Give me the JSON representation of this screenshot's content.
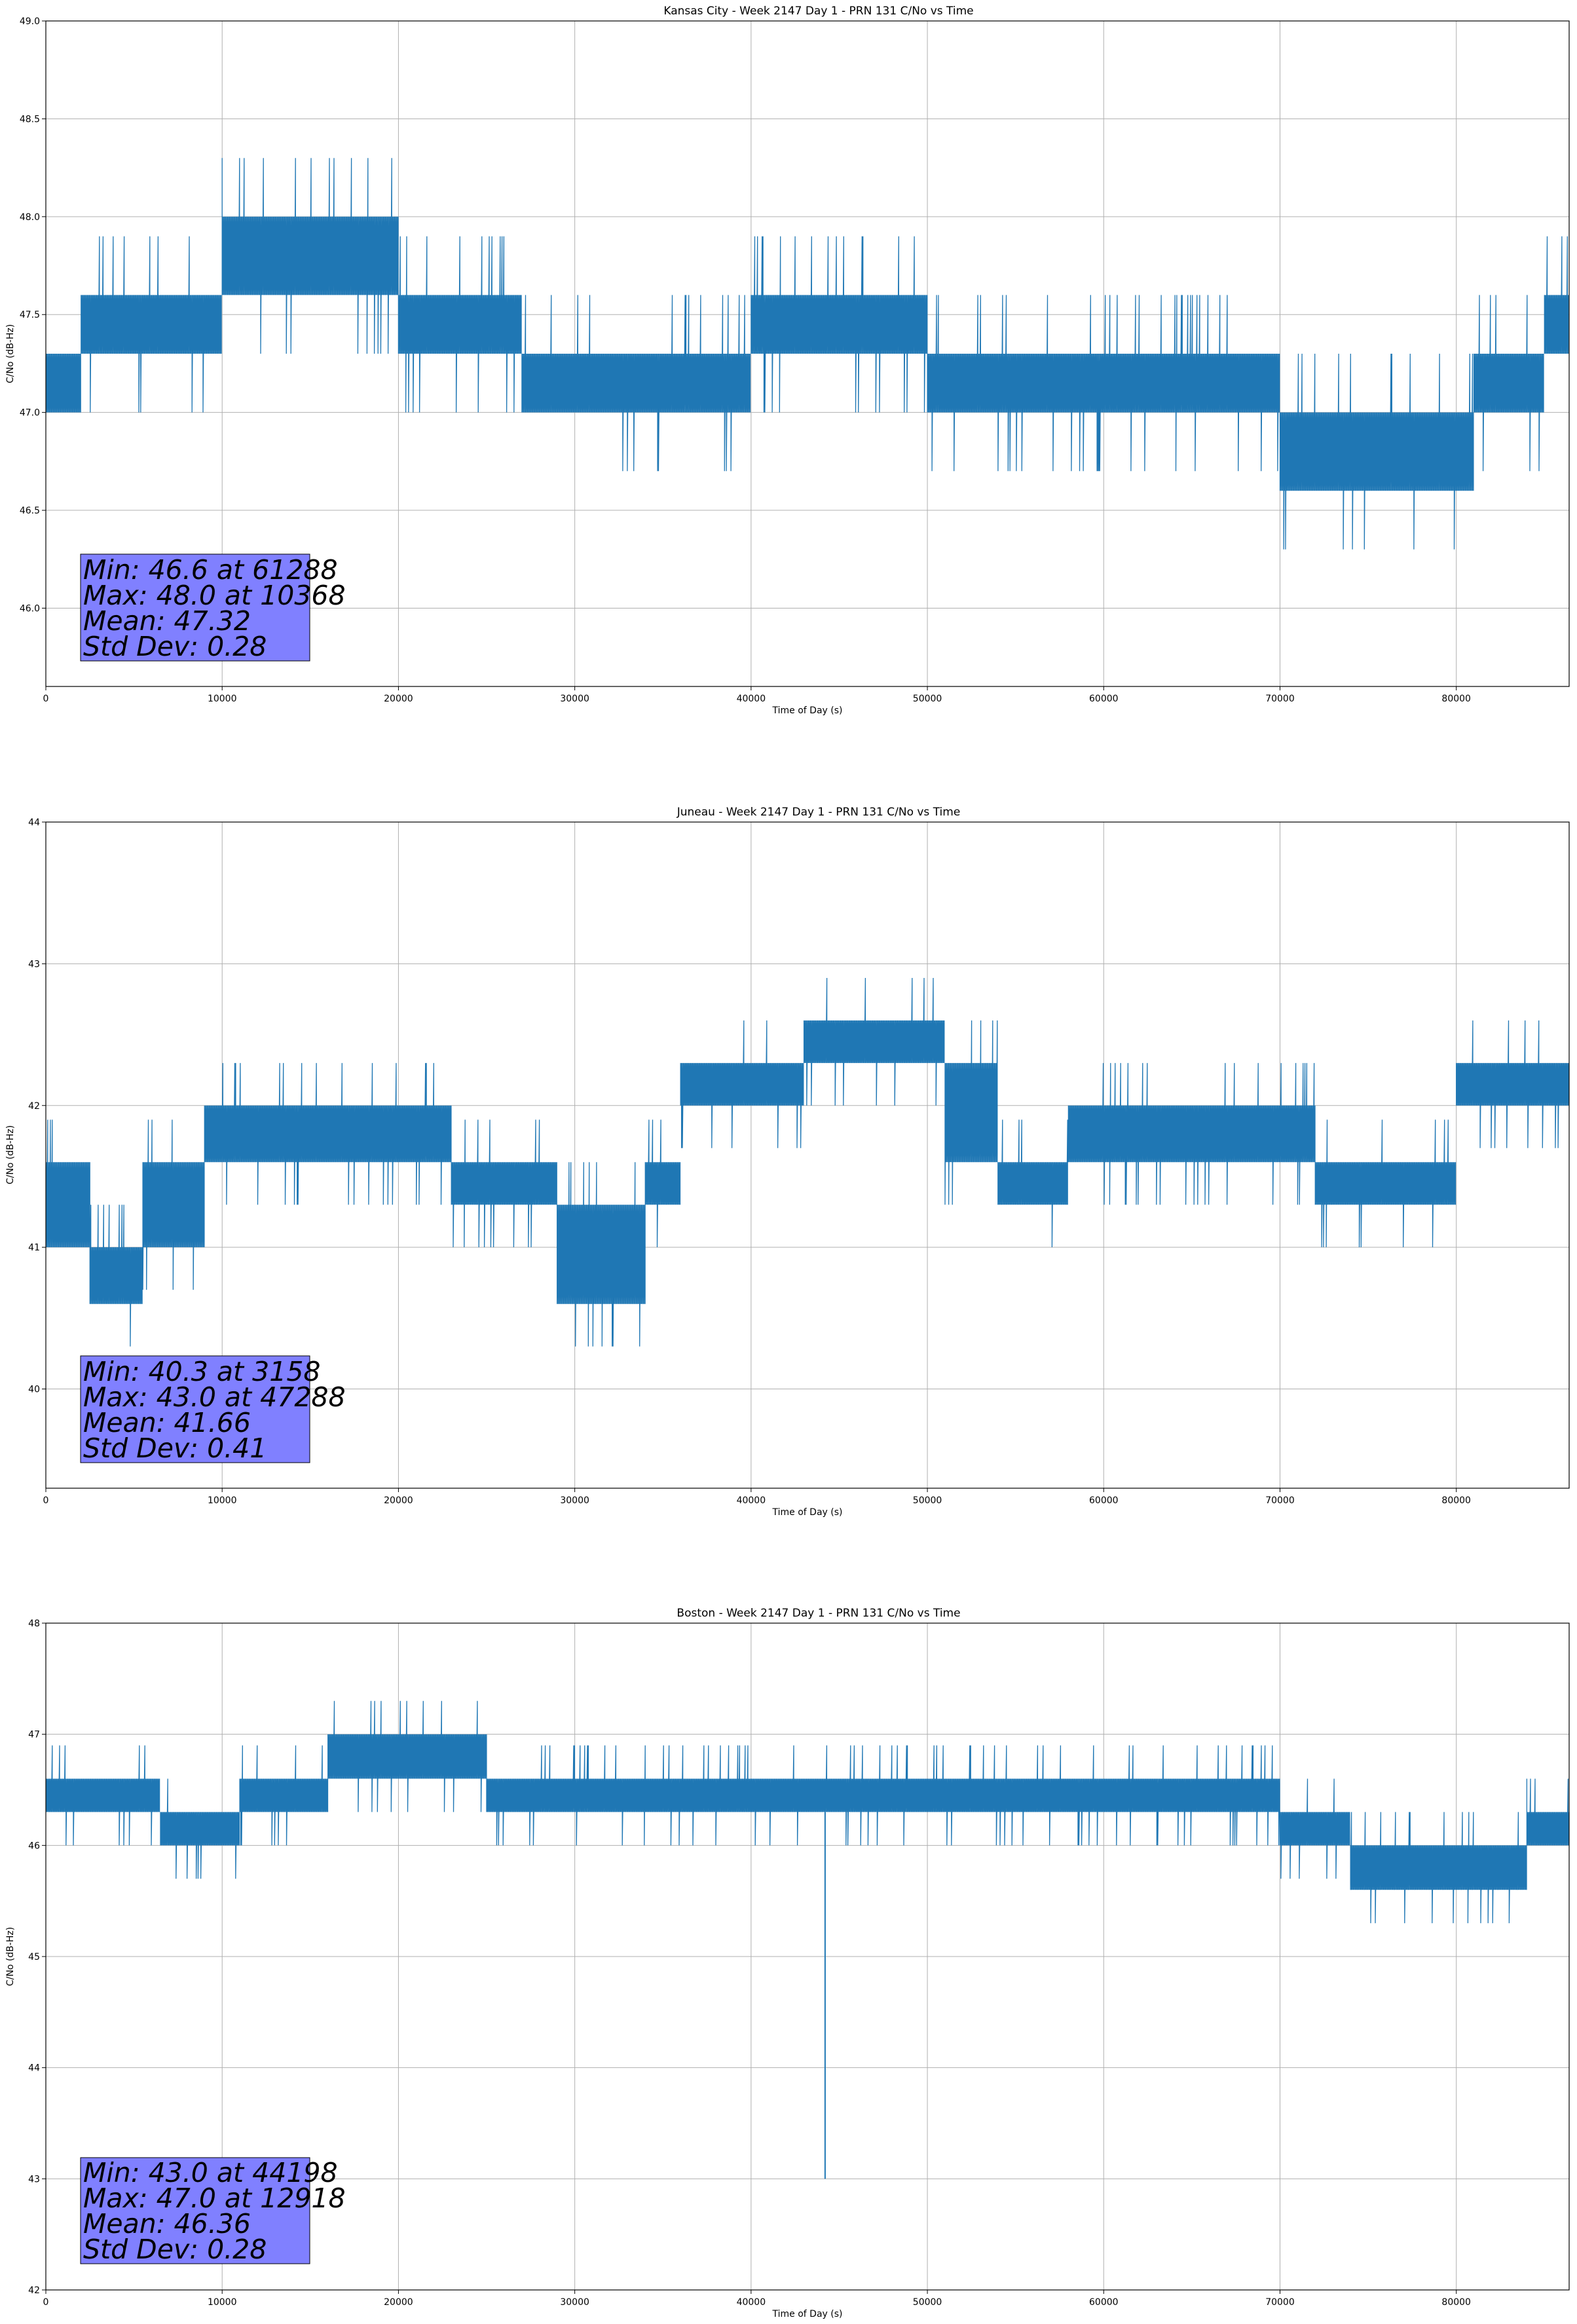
{
  "figure": {
    "series_color": "#1f77b4",
    "grid_color": "#b0b0b0",
    "statbox_color": "#8080ff"
  },
  "chart_data": [
    {
      "type": "line",
      "title": "Kansas City - Week 2147 Day 1 - PRN 131 C/No vs Time",
      "xlabel": "Time of Day (s)",
      "ylabel": "C/No (dB-Hz)",
      "xlim": [
        0,
        86400
      ],
      "ylim": [
        45.6,
        49.0
      ],
      "xticks": [
        0,
        10000,
        20000,
        30000,
        40000,
        50000,
        60000,
        70000,
        80000
      ],
      "yticks": [
        46.0,
        46.5,
        47.0,
        47.5,
        48.0,
        48.5,
        49.0
      ],
      "ytick_labels": [
        "46.0",
        "46.5",
        "47.0",
        "47.5",
        "48.0",
        "48.5",
        "49.0"
      ],
      "grid": true,
      "quantum": 0.3,
      "segments": [
        {
          "x0": 0,
          "x1": 2000,
          "lo": 47.0,
          "hi": 47.3
        },
        {
          "x0": 2000,
          "x1": 10000,
          "lo": 47.3,
          "hi": 47.6
        },
        {
          "x0": 10000,
          "x1": 20000,
          "lo": 47.6,
          "hi": 48.0
        },
        {
          "x0": 20000,
          "x1": 27000,
          "lo": 47.3,
          "hi": 47.6
        },
        {
          "x0": 27000,
          "x1": 40000,
          "lo": 47.0,
          "hi": 47.3
        },
        {
          "x0": 40000,
          "x1": 50000,
          "lo": 47.3,
          "hi": 47.6
        },
        {
          "x0": 50000,
          "x1": 70000,
          "lo": 47.0,
          "hi": 47.3
        },
        {
          "x0": 70000,
          "x1": 81000,
          "lo": 46.6,
          "hi": 47.0
        },
        {
          "x0": 81000,
          "x1": 85000,
          "lo": 47.0,
          "hi": 47.3
        },
        {
          "x0": 85000,
          "x1": 86400,
          "lo": 47.3,
          "hi": 47.6
        }
      ],
      "stats": {
        "min": "Min: 46.6 at 61288",
        "max": "Max: 48.0 at 10368",
        "mean": "Mean: 47.32",
        "std": "Std Dev: 0.28"
      }
    },
    {
      "type": "line",
      "title": "Juneau - Week 2147 Day 1 - PRN 131 C/No vs Time",
      "xlabel": "Time of Day (s)",
      "ylabel": "C/No (dB-Hz)",
      "xlim": [
        0,
        86400
      ],
      "ylim": [
        39.3,
        44.0
      ],
      "xticks": [
        0,
        10000,
        20000,
        30000,
        40000,
        50000,
        60000,
        70000,
        80000
      ],
      "yticks": [
        40,
        41,
        42,
        43,
        44
      ],
      "ytick_labels": [
        "40",
        "41",
        "42",
        "43",
        "44"
      ],
      "grid": true,
      "quantum": 0.3,
      "segments": [
        {
          "x0": 0,
          "x1": 2500,
          "lo": 41.0,
          "hi": 41.6
        },
        {
          "x0": 2500,
          "x1": 5500,
          "lo": 40.6,
          "hi": 41.0
        },
        {
          "x0": 5500,
          "x1": 9000,
          "lo": 41.0,
          "hi": 41.6
        },
        {
          "x0": 9000,
          "x1": 23000,
          "lo": 41.6,
          "hi": 42.0
        },
        {
          "x0": 23000,
          "x1": 29000,
          "lo": 41.3,
          "hi": 41.6
        },
        {
          "x0": 29000,
          "x1": 34000,
          "lo": 40.6,
          "hi": 41.3
        },
        {
          "x0": 34000,
          "x1": 36000,
          "lo": 41.3,
          "hi": 41.6
        },
        {
          "x0": 36000,
          "x1": 43000,
          "lo": 42.0,
          "hi": 42.3
        },
        {
          "x0": 43000,
          "x1": 51000,
          "lo": 42.3,
          "hi": 42.6
        },
        {
          "x0": 51000,
          "x1": 54000,
          "lo": 41.6,
          "hi": 42.3
        },
        {
          "x0": 54000,
          "x1": 58000,
          "lo": 41.3,
          "hi": 41.6
        },
        {
          "x0": 58000,
          "x1": 72000,
          "lo": 41.6,
          "hi": 42.0
        },
        {
          "x0": 72000,
          "x1": 80000,
          "lo": 41.3,
          "hi": 41.6
        },
        {
          "x0": 80000,
          "x1": 86400,
          "lo": 42.0,
          "hi": 42.3
        }
      ],
      "stats": {
        "min": "Min: 40.3 at 3158",
        "max": "Max: 43.0 at 47288",
        "mean": "Mean: 41.66",
        "std": "Std Dev: 0.41"
      }
    },
    {
      "type": "line",
      "title": "Boston - Week 2147 Day 1 - PRN 131 C/No vs Time",
      "xlabel": "Time of Day (s)",
      "ylabel": "C/No (dB-Hz)",
      "xlim": [
        0,
        86400
      ],
      "ylim": [
        42.0,
        48.0
      ],
      "xticks": [
        0,
        10000,
        20000,
        30000,
        40000,
        50000,
        60000,
        70000,
        80000
      ],
      "yticks": [
        42,
        43,
        44,
        45,
        46,
        47,
        48
      ],
      "ytick_labels": [
        "42",
        "43",
        "44",
        "45",
        "46",
        "47",
        "48"
      ],
      "grid": true,
      "quantum": 0.3,
      "segments": [
        {
          "x0": 0,
          "x1": 6500,
          "lo": 46.3,
          "hi": 46.6
        },
        {
          "x0": 6500,
          "x1": 11000,
          "lo": 46.0,
          "hi": 46.3
        },
        {
          "x0": 11000,
          "x1": 16000,
          "lo": 46.3,
          "hi": 46.6
        },
        {
          "x0": 16000,
          "x1": 25000,
          "lo": 46.6,
          "hi": 47.0
        },
        {
          "x0": 25000,
          "x1": 70000,
          "lo": 46.3,
          "hi": 46.6
        },
        {
          "x0": 70000,
          "x1": 74000,
          "lo": 46.0,
          "hi": 46.3
        },
        {
          "x0": 74000,
          "x1": 84000,
          "lo": 45.6,
          "hi": 46.0
        },
        {
          "x0": 84000,
          "x1": 86400,
          "lo": 46.0,
          "hi": 46.3
        }
      ],
      "spikes": [
        {
          "x": 44198,
          "lo": 43.0,
          "hi": 46.3
        }
      ],
      "stats": {
        "min": "Min: 43.0 at 44198",
        "max": "Max: 47.0 at 12918",
        "mean": "Mean: 46.36",
        "std": "Std Dev: 0.28"
      }
    }
  ]
}
